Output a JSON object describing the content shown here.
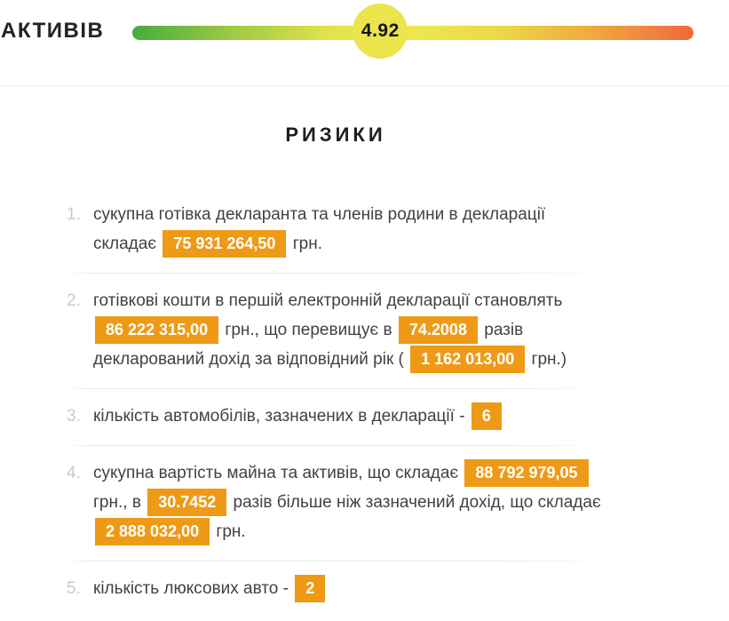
{
  "colors": {
    "accent": "#ef9a17",
    "gradient_start": "#44ad3c",
    "gradient_mid": "#ebe84d",
    "gradient_end": "#f2673c",
    "knob": "#ebe44c"
  },
  "gauge": {
    "label": "АКТИВІВ",
    "value": "4.92",
    "position_pct": 44.2
  },
  "section": {
    "title": "РИЗИКИ"
  },
  "risks": {
    "items": [
      {
        "num": "1.",
        "segments": [
          {
            "type": "text",
            "text": "сукупна готівка декларанта та членів родини в декларації складає "
          },
          {
            "type": "badge",
            "text": "75 931 264,50"
          },
          {
            "type": "text",
            "text": " грн."
          }
        ]
      },
      {
        "num": "2.",
        "segments": [
          {
            "type": "text",
            "text": "готівкові кошти в першій електронній декларації становлять "
          },
          {
            "type": "badge",
            "text": "86 222 315,00"
          },
          {
            "type": "text",
            "text": " грн., що перевищує в "
          },
          {
            "type": "badge",
            "text": "74.2008"
          },
          {
            "type": "text",
            "text": " разів декларований дохід за відповідний рік ( "
          },
          {
            "type": "badge",
            "text": "1 162 013,00"
          },
          {
            "type": "text",
            "text": " грн.)"
          }
        ]
      },
      {
        "num": "3.",
        "segments": [
          {
            "type": "text",
            "text": "кількість автомобілів, зазначених в декларації - "
          },
          {
            "type": "badge",
            "text": "6"
          }
        ]
      },
      {
        "num": "4.",
        "segments": [
          {
            "type": "text",
            "text": "сукупна вартість майна та активів, що складає "
          },
          {
            "type": "badge",
            "text": "88 792 979,05"
          },
          {
            "type": "text",
            "text": " грн., в "
          },
          {
            "type": "badge",
            "text": "30.7452"
          },
          {
            "type": "text",
            "text": " разів більше ніж зазначений дохід, що складає "
          },
          {
            "type": "badge",
            "text": "2 888 032,00"
          },
          {
            "type": "text",
            "text": " грн."
          }
        ]
      },
      {
        "num": "5.",
        "segments": [
          {
            "type": "text",
            "text": "кількість люксових авто - "
          },
          {
            "type": "badge",
            "text": "2"
          }
        ]
      }
    ]
  }
}
